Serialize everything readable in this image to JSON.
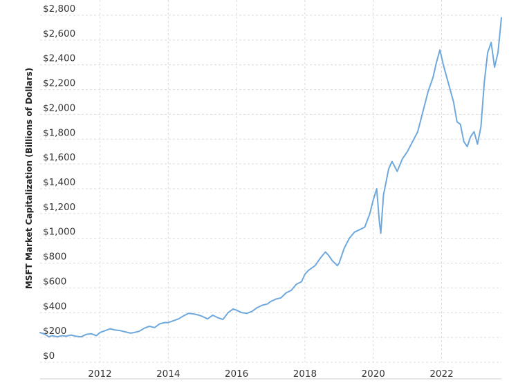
{
  "chart_data": {
    "type": "line",
    "title": "",
    "xlabel": "",
    "ylabel": "MSFT Market Capitalization (Billions of Dollars)",
    "xlim": [
      2010.25,
      2023.75
    ],
    "ylim": [
      0,
      2800
    ],
    "grid": true,
    "y_ticks": [
      {
        "value": 0,
        "label": "$0"
      },
      {
        "value": 200,
        "label": "$200"
      },
      {
        "value": 400,
        "label": "$400"
      },
      {
        "value": 600,
        "label": "$600"
      },
      {
        "value": 800,
        "label": "$800"
      },
      {
        "value": 1000,
        "label": "$1,000"
      },
      {
        "value": 1200,
        "label": "$1,200"
      },
      {
        "value": 1400,
        "label": "$1,400"
      },
      {
        "value": 1600,
        "label": "$1,600"
      },
      {
        "value": 1800,
        "label": "$1,800"
      },
      {
        "value": 2000,
        "label": "$2,000"
      },
      {
        "value": 2200,
        "label": "$2,200"
      },
      {
        "value": 2400,
        "label": "$2,400"
      },
      {
        "value": 2600,
        "label": "$2,600"
      },
      {
        "value": 2800,
        "label": "$2,800"
      }
    ],
    "x_ticks": [
      {
        "value": 2012,
        "label": "2012"
      },
      {
        "value": 2014,
        "label": "2014"
      },
      {
        "value": 2016,
        "label": "2016"
      },
      {
        "value": 2018,
        "label": "2018"
      },
      {
        "value": 2020,
        "label": "2020"
      },
      {
        "value": 2022,
        "label": "2022"
      }
    ],
    "series_color": "#6fa8dc",
    "series": [
      {
        "x": [
          2010.25,
          2010.4,
          2010.5,
          2010.6,
          2010.75,
          2010.9,
          2011.0,
          2011.15,
          2011.3,
          2011.45,
          2011.6,
          2011.75,
          2011.9,
          2012.0,
          2012.15,
          2012.3,
          2012.45,
          2012.6,
          2012.75,
          2012.9,
          2013.0,
          2013.15,
          2013.3,
          2013.45,
          2013.6,
          2013.75,
          2013.9,
          2014.0,
          2014.15,
          2014.3,
          2014.45,
          2014.6,
          2014.75,
          2014.9,
          2015.0,
          2015.15,
          2015.3,
          2015.45,
          2015.6,
          2015.75,
          2015.9,
          2016.0,
          2016.15,
          2016.3,
          2016.45,
          2016.6,
          2016.75,
          2016.9,
          2017.0,
          2017.15,
          2017.3,
          2017.45,
          2017.6,
          2017.75,
          2017.9,
          2018.0,
          2018.1,
          2018.2,
          2018.3,
          2018.45,
          2018.6,
          2018.7,
          2018.8,
          2018.95,
          2019.0,
          2019.15,
          2019.3,
          2019.45,
          2019.6,
          2019.75,
          2019.9,
          2020.0,
          2020.1,
          2020.18,
          2020.22,
          2020.3,
          2020.45,
          2020.55,
          2020.7,
          2020.85,
          2021.0,
          2021.15,
          2021.3,
          2021.45,
          2021.6,
          2021.75,
          2021.85,
          2021.95,
          2022.05,
          2022.15,
          2022.25,
          2022.35,
          2022.45,
          2022.55,
          2022.65,
          2022.75,
          2022.85,
          2022.95,
          2023.05,
          2023.15,
          2023.25,
          2023.35,
          2023.45,
          2023.55,
          2023.65,
          2023.75
        ],
        "y": [
          240,
          225,
          205,
          215,
          205,
          215,
          210,
          220,
          210,
          205,
          225,
          230,
          215,
          240,
          255,
          270,
          260,
          255,
          245,
          235,
          240,
          250,
          275,
          290,
          280,
          310,
          320,
          320,
          335,
          350,
          375,
          395,
          390,
          380,
          370,
          350,
          380,
          360,
          345,
          400,
          430,
          420,
          400,
          395,
          410,
          440,
          460,
          470,
          490,
          510,
          520,
          560,
          580,
          630,
          650,
          710,
          740,
          760,
          780,
          840,
          890,
          860,
          820,
          780,
          800,
          920,
          1000,
          1050,
          1070,
          1090,
          1200,
          1310,
          1400,
          1130,
          1040,
          1350,
          1560,
          1620,
          1540,
          1640,
          1700,
          1780,
          1860,
          2020,
          2180,
          2300,
          2420,
          2520,
          2400,
          2300,
          2200,
          2100,
          1940,
          1920,
          1780,
          1740,
          1820,
          1860,
          1760,
          1900,
          2260,
          2500,
          2580,
          2380,
          2500,
          2780
        ]
      }
    ]
  }
}
